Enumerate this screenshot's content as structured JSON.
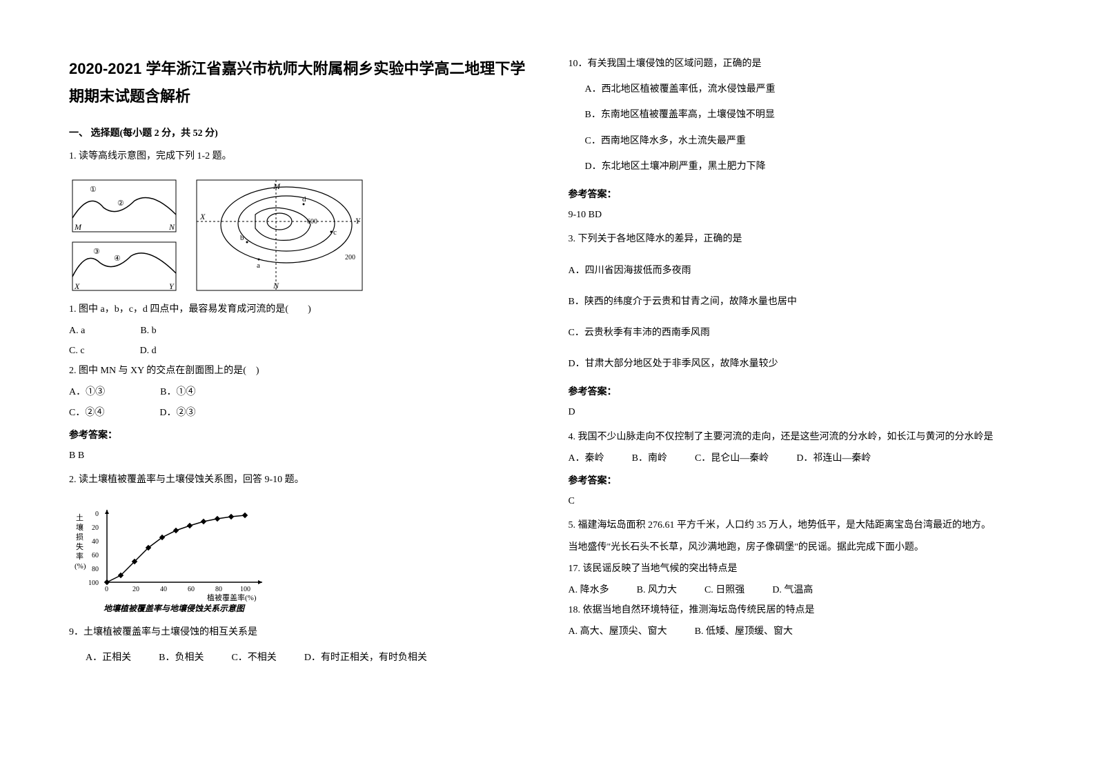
{
  "title": "2020-2021 学年浙江省嘉兴市杭师大附属桐乡实验中学高二地理下学期期末试题含解析",
  "section1": "一、 选择题(每小题 2 分，共 52 分)",
  "q1": {
    "stem": "1. 读等高线示意图，完成下列 1-2 题。",
    "sub1": "1. 图中 a，b，c，d 四点中，最容易发育成河流的是(　　)",
    "sub1_opts": {
      "A": "A. a",
      "B": "B. b",
      "C": "C. c",
      "D": "D. d"
    },
    "sub2": "2. 图中 MN 与 XY 的交点在剖面图上的是(　)",
    "sub2_opts": {
      "A": "A．①③",
      "B": "B．①④",
      "C": "C．②④",
      "D": "D．②③"
    },
    "answer_label": "参考答案：",
    "answer": "B B",
    "figure_labels": {
      "M1": "M",
      "N1": "N",
      "X1": "X",
      "Y1": "Y",
      "M2": "M",
      "N2": "N",
      "X2": "X",
      "Y2": "Y",
      "a": "a",
      "b": "b",
      "c": "c",
      "d": "d",
      "n1": "①",
      "n2": "②",
      "n3": "③",
      "n4": "④",
      "h600": "600",
      "h200": "200"
    }
  },
  "q2": {
    "stem": "2. 读土壤植被覆盖率与土壤侵蚀关系图，回答 9-10 题。",
    "figure_axes": {
      "ylabel": "土壤损失率(%)",
      "xlabel": "植被覆盖率(%)",
      "caption": "地壤植被覆盖率与地壤侵蚀关系示意图",
      "xticks": [
        "0",
        "20",
        "40",
        "60",
        "80",
        "100"
      ],
      "yticks": [
        "0",
        "20",
        "40",
        "60",
        "80",
        "100"
      ]
    },
    "chart": {
      "type": "line",
      "points": [
        {
          "x": 0,
          "y": 100
        },
        {
          "x": 10,
          "y": 90
        },
        {
          "x": 20,
          "y": 70
        },
        {
          "x": 30,
          "y": 50
        },
        {
          "x": 40,
          "y": 35
        },
        {
          "x": 50,
          "y": 25
        },
        {
          "x": 60,
          "y": 18
        },
        {
          "x": 70,
          "y": 12
        },
        {
          "x": 80,
          "y": 8
        },
        {
          "x": 90,
          "y": 5
        },
        {
          "x": 100,
          "y": 3
        }
      ],
      "marker": "diamond",
      "line_color": "#000000",
      "marker_color": "#000000",
      "xlim": [
        0,
        100
      ],
      "ylim": [
        0,
        100
      ]
    },
    "sub9": "9．土壤植被覆盖率与土壤侵蚀的相互关系是",
    "sub9_opts": {
      "A": "A．正相关",
      "B": "B．负相关",
      "C": "C．不相关",
      "D": "D．有时正相关，有时负相关"
    },
    "sub10": "10．有关我国土壤侵蚀的区域问题，正确的是",
    "sub10_opts": {
      "A": "A．西北地区植被覆盖率低，流水侵蚀最严重",
      "B": "B．东南地区植被覆盖率高，土壤侵蚀不明显",
      "C": "C．西南地区降水多，水土流失最严重",
      "D": "D．东北地区土壤冲刷严重，黑土肥力下降"
    },
    "answer_label": "参考答案：",
    "answer": "9-10 BD"
  },
  "q3": {
    "stem": "3. 下列关于各地区降水的差异，正确的是",
    "opts": {
      "A": "A．四川省因海拔低而多夜雨",
      "B": "B．陕西的纬度介于云贵和甘青之间，故降水量也居中",
      "C": "C．云贵秋季有丰沛的西南季风雨",
      "D": "D．甘肃大部分地区处于非季风区，故降水量较少"
    },
    "answer_label": "参考答案：",
    "answer": "D"
  },
  "q4": {
    "stem": "4. 我国不少山脉走向不仅控制了主要河流的走向，还是这些河流的分水岭，如长江与黄河的分水岭是",
    "opts": {
      "A": "A．秦岭",
      "B": "B．南岭",
      "C": "C．昆仑山—秦岭",
      "D": "D．祁连山—秦岭"
    },
    "answer_label": "参考答案：",
    "answer": "C"
  },
  "q5": {
    "stem1": "5. 福建海坛岛面积 276.61 平方千米，人口约 35 万人，地势低平，是大陆距离宝岛台湾最近的地方。",
    "stem2": "当地盛传\"光长石头不长草，风沙满地跑，房子像碉堡\"的民谣。据此完成下面小题。",
    "sub17": "17.  该民谣反映了当地气候的突出特点是",
    "sub17_opts": {
      "A": "A.  降水多",
      "B": "B.  风力大",
      "C": "C.  日照强",
      "D": "D.  气温高"
    },
    "sub18": "18.  依据当地自然环境特征，推测海坛岛传统民居的特点是",
    "sub18_opts": {
      "A": "A.  高大、屋顶尖、窗大",
      "B": "B.  低矮、屋顶缓、窗大"
    }
  }
}
